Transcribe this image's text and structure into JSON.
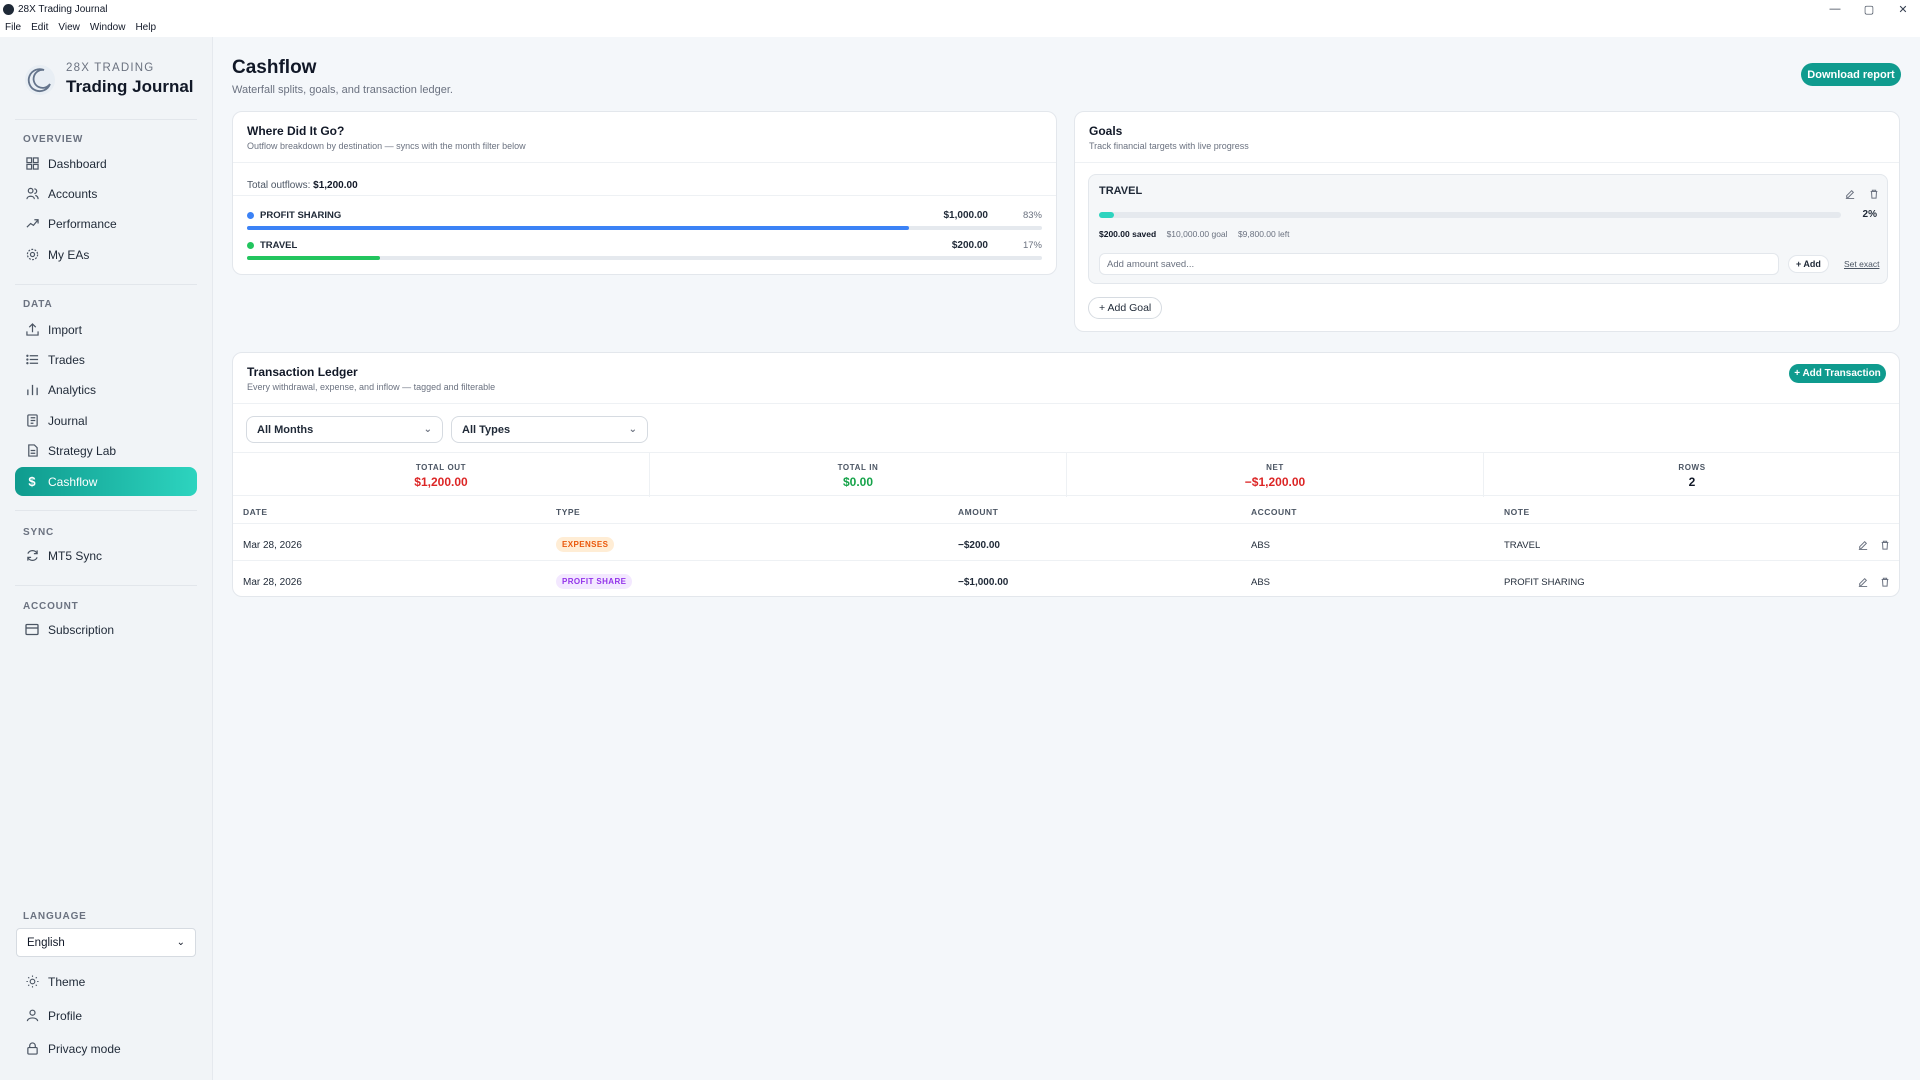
{
  "window": {
    "title": "28X Trading Journal",
    "controls": {
      "minimize": "—",
      "maximize": "▢",
      "close": "✕"
    }
  },
  "menu": [
    "File",
    "Edit",
    "View",
    "Window",
    "Help"
  ],
  "sidebar": {
    "brand_sub": "28X TRADING",
    "brand_title": "Trading Journal",
    "sections": {
      "overview": "OVERVIEW",
      "data": "DATA",
      "sync": "SYNC",
      "account": "ACCOUNT",
      "language": "LANGUAGE"
    },
    "items": {
      "dashboard": "Dashboard",
      "accounts": "Accounts",
      "performance": "Performance",
      "my_eas": "My EAs",
      "import": "Import",
      "trades": "Trades",
      "analytics": "Analytics",
      "journal": "Journal",
      "strategy_lab": "Strategy Lab",
      "cashflow": "Cashflow",
      "mt5_sync": "MT5 Sync",
      "subscription": "Subscription",
      "theme": "Theme",
      "profile": "Profile",
      "privacy_mode": "Privacy mode"
    },
    "active_item": "cashflow",
    "language_value": "English"
  },
  "page": {
    "title": "Cashflow",
    "subtitle": "Waterfall splits, goals, and transaction ledger.",
    "download_label": "Download report"
  },
  "where": {
    "title": "Where Did It Go?",
    "subtitle": "Outflow breakdown by destination — syncs with the month filter below",
    "total_label": "Total outflows:",
    "total_value": "$1,200.00",
    "rows": [
      {
        "name": "PROFIT SHARING",
        "amount": "$1,000.00",
        "pct_label": "83%",
        "pct": 0.833,
        "color": "#3b82f6"
      },
      {
        "name": "TRAVEL",
        "amount": "$200.00",
        "pct_label": "17%",
        "pct": 0.167,
        "color": "#22c55e"
      }
    ]
  },
  "goals": {
    "title": "Goals",
    "subtitle": "Track financial targets with live progress",
    "goal": {
      "name": "TRAVEL",
      "pct_label": "2%",
      "progress": 0.02,
      "saved": "$200.00 saved",
      "target": "$10,000.00 goal",
      "left": "$9,800.00 left",
      "input_placeholder": "Add amount saved...",
      "add_label": "+ Add",
      "set_exact_label": "Set exact"
    },
    "add_goal_label": "+ Add Goal"
  },
  "ledger": {
    "title": "Transaction Ledger",
    "subtitle": "Every withdrawal, expense, and inflow — tagged and filterable",
    "add_label": "+ Add Transaction",
    "filters": {
      "month": "All Months",
      "type": "All Types"
    },
    "stats": [
      {
        "label": "TOTAL OUT",
        "value": "$1,200.00",
        "color": "#dc2626"
      },
      {
        "label": "TOTAL IN",
        "value": "$0.00",
        "color": "#16a34a"
      },
      {
        "label": "NET",
        "value": "−$1,200.00",
        "color": "#dc2626"
      },
      {
        "label": "ROWS",
        "value": "2",
        "color": "#111827"
      }
    ],
    "columns": [
      "DATE",
      "TYPE",
      "AMOUNT",
      "ACCOUNT",
      "NOTE"
    ],
    "rows": [
      {
        "date": "Mar 28, 2026",
        "type": "EXPENSES",
        "type_color": "#ea580c",
        "type_bg": "#ffedd5",
        "amount": "−$200.00",
        "account": "ABS",
        "note": "TRAVEL"
      },
      {
        "date": "Mar 28, 2026",
        "type": "PROFIT SHARE",
        "type_color": "#9333ea",
        "type_bg": "#f3e8ff",
        "amount": "−$1,000.00",
        "account": "ABS",
        "note": "PROFIT SHARING"
      }
    ]
  }
}
